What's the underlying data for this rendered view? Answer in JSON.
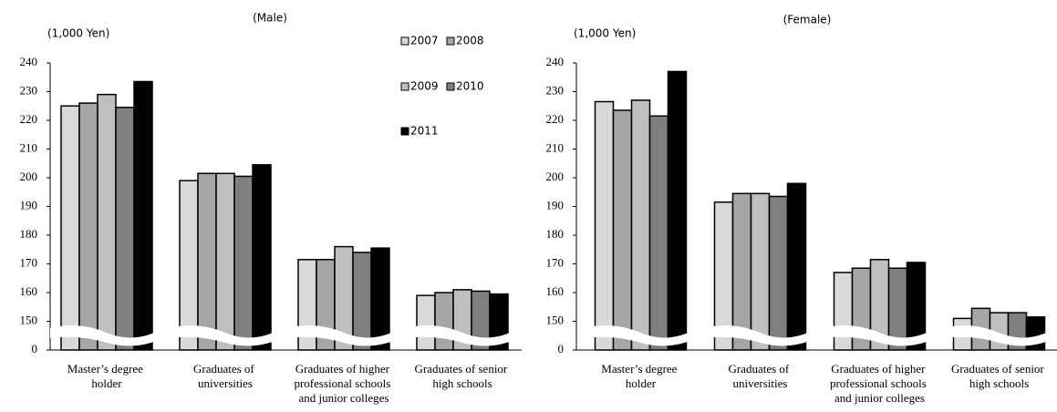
{
  "chart_data": [
    {
      "type": "bar",
      "title": "(Male)",
      "y_label": "(1,000 Yen)",
      "categories": [
        "Master’s degree holder",
        "Graduates of universities",
        "Graduates of higher professional schools and junior colleges",
        "Graduates of senior high schools"
      ],
      "series": [
        {
          "name": "2007",
          "color": "#d9d9d9",
          "values": [
            225,
            199,
            171.5,
            159
          ]
        },
        {
          "name": "2008",
          "color": "#a6a6a6",
          "values": [
            226,
            201.5,
            171.5,
            160
          ]
        },
        {
          "name": "2009",
          "color": "#bfbfbf",
          "values": [
            229,
            201.5,
            176,
            161
          ]
        },
        {
          "name": "2010",
          "color": "#7f7f7f",
          "values": [
            224.5,
            200.5,
            174,
            160.5
          ]
        },
        {
          "name": "2011",
          "color": "#000000",
          "values": [
            233.5,
            204.5,
            175.5,
            159.5
          ]
        }
      ],
      "ylim": [
        0,
        240
      ],
      "axis_break": [
        0,
        140
      ],
      "yticks": [
        0,
        150,
        160,
        170,
        180,
        190,
        200,
        210,
        220,
        230,
        240
      ],
      "legend": true
    },
    {
      "type": "bar",
      "title": "(Female)",
      "y_label": "(1,000 Yen)",
      "categories": [
        "Master’s degree holder",
        "Graduates of universities",
        "Graduates of higher professional schools and junior colleges",
        "Graduates of senior high schools"
      ],
      "series": [
        {
          "name": "2007",
          "color": "#d9d9d9",
          "values": [
            226.5,
            191.5,
            167,
            151
          ]
        },
        {
          "name": "2008",
          "color": "#a6a6a6",
          "values": [
            223.5,
            194.5,
            168.5,
            154.5
          ]
        },
        {
          "name": "2009",
          "color": "#bfbfbf",
          "values": [
            227,
            194.5,
            171.5,
            153
          ]
        },
        {
          "name": "2010",
          "color": "#7f7f7f",
          "values": [
            221.5,
            193.5,
            168.5,
            153
          ]
        },
        {
          "name": "2011",
          "color": "#000000",
          "values": [
            237,
            198,
            170.5,
            151.5
          ]
        }
      ],
      "ylim": [
        0,
        240
      ],
      "axis_break": [
        0,
        140
      ],
      "yticks": [
        0,
        150,
        160,
        170,
        180,
        190,
        200,
        210,
        220,
        230,
        240
      ],
      "legend": false
    }
  ]
}
